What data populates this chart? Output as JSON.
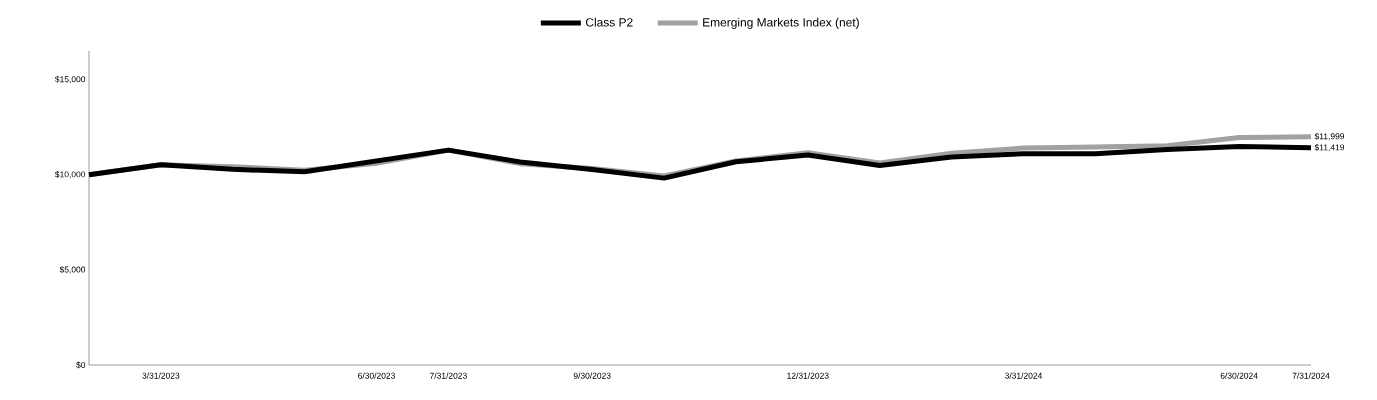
{
  "chart_data": {
    "type": "line",
    "categories": [
      null,
      "3/31/2023",
      null,
      null,
      "6/30/2023",
      "7/31/2023",
      null,
      "9/30/2023",
      null,
      null,
      "12/31/2023",
      null,
      null,
      "3/31/2024",
      null,
      null,
      "6/30/2024",
      "7/31/2024"
    ],
    "series": [
      {
        "name": "Class P2",
        "color": "#000000",
        "values": [
          10000,
          10520,
          10280,
          10150,
          10720,
          11290,
          10670,
          10270,
          9820,
          10680,
          11030,
          10480,
          10930,
          11100,
          11100,
          11320,
          11480,
          11419
        ]
      },
      {
        "name": "Emerging Markets Index (net)",
        "color": "#a0a2a1",
        "values": [
          10000,
          10520,
          10420,
          10230,
          10600,
          11290,
          10580,
          10330,
          9930,
          10720,
          11150,
          10620,
          11130,
          11400,
          11450,
          11520,
          11950,
          11999
        ]
      }
    ],
    "ylim": [
      0,
      16500
    ],
    "yticks": [
      {
        "value": 0,
        "label": "$0"
      },
      {
        "value": 5000,
        "label": "$5,000"
      },
      {
        "value": 10000,
        "label": "$10,000"
      },
      {
        "value": 15000,
        "label": "$15,000"
      }
    ],
    "legend": "top",
    "annotations": [
      {
        "text": "$11,999",
        "x": "7/31/2024",
        "y": 11999
      },
      {
        "text": "$11,419",
        "x": "7/31/2024",
        "y": 11419
      }
    ]
  }
}
